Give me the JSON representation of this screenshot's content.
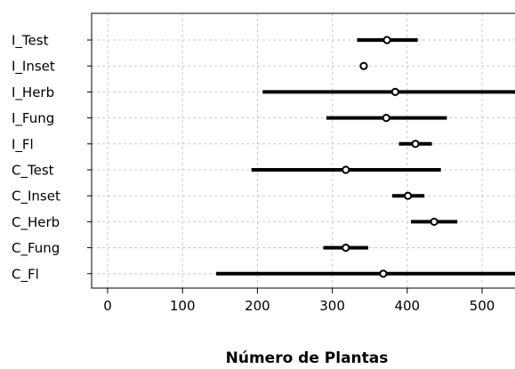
{
  "chart_data": {
    "type": "dot-interval",
    "xlabel": "Número de Plantas",
    "ylabel": "",
    "xlim": [
      -20,
      540
    ],
    "xticks": [
      0,
      100,
      200,
      300,
      400,
      500
    ],
    "grid": true,
    "categories": [
      "I_Test",
      "I_Inset",
      "I_Herb",
      "I_Fung",
      "I_Fl",
      "C_Test",
      "C_Inset",
      "C_Herb",
      "C_Fung",
      "C_Fl"
    ],
    "series": [
      {
        "points": [
          {
            "category": "I_Test",
            "value": 373,
            "lower": 333,
            "upper": 414
          },
          {
            "category": "I_Inset",
            "value": 342,
            "lower": 340,
            "upper": 344
          },
          {
            "category": "I_Herb",
            "value": 384,
            "lower": 207,
            "upper": 560
          },
          {
            "category": "I_Fung",
            "value": 372,
            "lower": 292,
            "upper": 453
          },
          {
            "category": "I_Fl",
            "value": 411,
            "lower": 389,
            "upper": 433
          },
          {
            "category": "C_Test",
            "value": 318,
            "lower": 192,
            "upper": 445
          },
          {
            "category": "C_Inset",
            "value": 401,
            "lower": 380,
            "upper": 423
          },
          {
            "category": "C_Herb",
            "value": 436,
            "lower": 405,
            "upper": 467
          },
          {
            "category": "C_Fung",
            "value": 318,
            "lower": 288,
            "upper": 348
          },
          {
            "category": "C_Fl",
            "value": 368,
            "lower": 145,
            "upper": 590
          }
        ]
      }
    ]
  }
}
